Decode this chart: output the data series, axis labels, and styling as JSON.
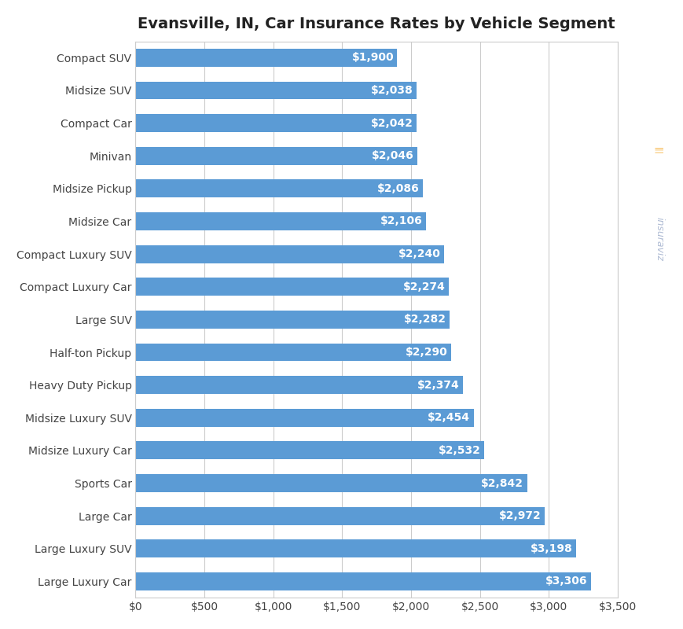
{
  "title": "Evansville, IN, Car Insurance Rates by Vehicle Segment",
  "categories": [
    "Large Luxury Car",
    "Large Luxury SUV",
    "Large Car",
    "Sports Car",
    "Midsize Luxury Car",
    "Midsize Luxury SUV",
    "Heavy Duty Pickup",
    "Half-ton Pickup",
    "Large SUV",
    "Compact Luxury Car",
    "Compact Luxury SUV",
    "Midsize Car",
    "Midsize Pickup",
    "Minivan",
    "Compact Car",
    "Midsize SUV",
    "Compact SUV"
  ],
  "values": [
    3306,
    3198,
    2972,
    2842,
    2532,
    2454,
    2374,
    2290,
    2282,
    2274,
    2240,
    2106,
    2086,
    2046,
    2042,
    2038,
    1900
  ],
  "bar_color": "#5b9bd5",
  "label_color": "#ffffff",
  "background_color": "#ffffff",
  "grid_color": "#cccccc",
  "title_fontsize": 14,
  "label_fontsize": 10,
  "tick_fontsize": 10,
  "xlim": [
    0,
    3500
  ],
  "xticks": [
    0,
    500,
    1000,
    1500,
    2000,
    2500,
    3000,
    3500
  ],
  "xtick_labels": [
    "$0",
    "$500",
    "$1,000",
    "$1,500",
    "$2,000",
    "$2,500",
    "$3,000",
    "$3,500"
  ],
  "bar_height": 0.55,
  "spine_color": "#cccccc",
  "watermark_text": "insuraviz",
  "watermark_color": "#b0bcd4",
  "watermark_dot_color": "#f5a623"
}
